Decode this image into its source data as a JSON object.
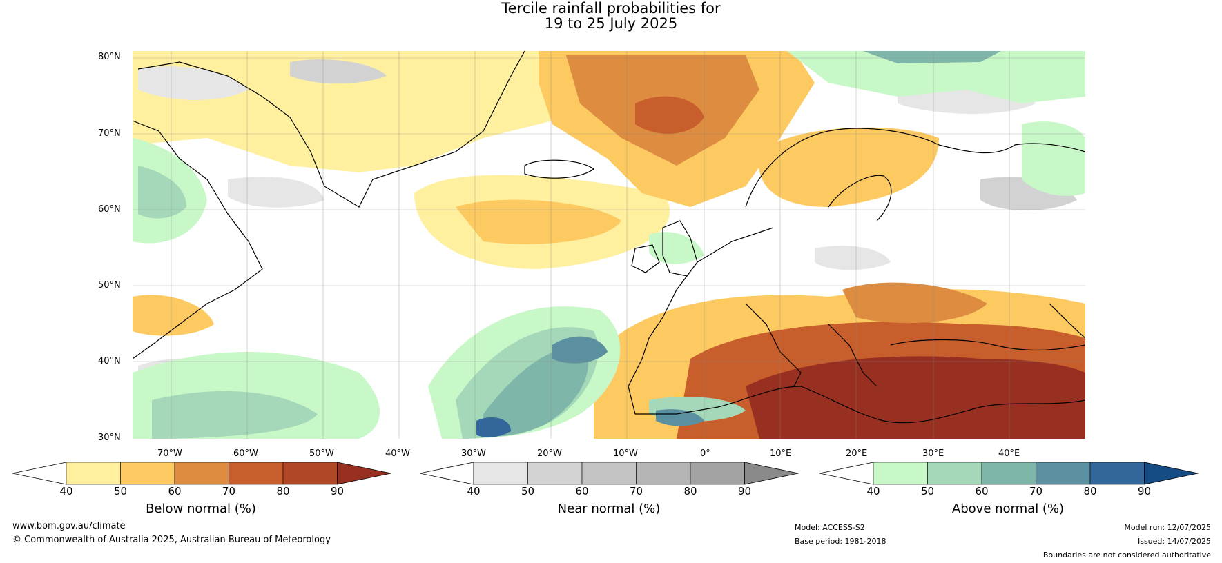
{
  "title": {
    "line1": "Tercile rainfall probabilities for",
    "line2": "19 to 25 July 2025"
  },
  "map": {
    "lat_labels": [
      "80°N",
      "70°N",
      "60°N",
      "50°N",
      "40°N",
      "30°N"
    ],
    "lon_labels": [
      "70°W",
      "60°W",
      "50°W",
      "40°W",
      "30°W",
      "20°W",
      "10°W",
      "0°",
      "10°E",
      "20°E",
      "30°E",
      "40°E"
    ]
  },
  "colorbars": [
    {
      "label": "Below normal (%)",
      "ticks": [
        "40",
        "50",
        "60",
        "70",
        "80",
        "90"
      ],
      "colors": [
        "#fff0a0",
        "#fdca62",
        "#dd8c40",
        "#c85e2c",
        "#b04828",
        "#973020"
      ]
    },
    {
      "label": "Near normal (%)",
      "ticks": [
        "40",
        "50",
        "60",
        "70",
        "80",
        "90"
      ],
      "colors": [
        "#e6e6e6",
        "#d2d2d2",
        "#c3c3c3",
        "#b4b4b4",
        "#a3a3a3",
        "#8a8a8a"
      ]
    },
    {
      "label": "Above normal (%)",
      "ticks": [
        "40",
        "50",
        "60",
        "70",
        "80",
        "90"
      ],
      "colors": [
        "#c8f7c8",
        "#a4d8b8",
        "#7fb6aa",
        "#5b90a0",
        "#33669a",
        "#164c84"
      ]
    }
  ],
  "footer": {
    "website": "www.bom.gov.au/climate",
    "copyright": "© Commonwealth of Australia 2025, Australian Bureau of Meteorology",
    "model": "Model: ACCESS-S2",
    "base_period": "Base period: 1981-2018",
    "model_run": "Model run: 12/07/2025",
    "issued": "Issued: 14/07/2025",
    "disclaimer": "Boundaries are not considered authoritative"
  }
}
